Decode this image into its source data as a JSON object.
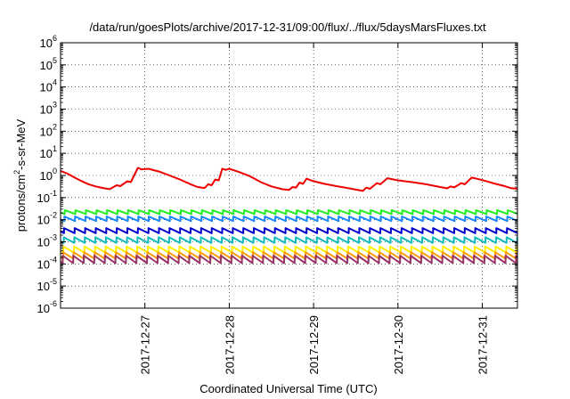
{
  "chart_data": {
    "type": "line",
    "title": "/data/run/goesPlots/archive/2017-12-31/09:00/flux/../flux/5daysMarsFluxes.txt",
    "xlabel": "Coordinated Universal Time (UTC)",
    "ylabel": {
      "prefix": "protons/cm",
      "superscript": "2",
      "suffix": "-s-sr-MeV"
    },
    "yscale": "log",
    "ylim": [
      1e-06,
      1000000.0
    ],
    "xlim": [
      "2017-12-26T00:00",
      "2017-12-31T10:00"
    ],
    "grid": {
      "x": true,
      "y": true,
      "style": "dotted"
    },
    "ytick_labels": [
      {
        "value": 1e-06,
        "base": "10",
        "exp": "-6"
      },
      {
        "value": 1e-05,
        "base": "10",
        "exp": "-5"
      },
      {
        "value": 0.0001,
        "base": "10",
        "exp": "-4"
      },
      {
        "value": 0.001,
        "base": "10",
        "exp": "-3"
      },
      {
        "value": 0.01,
        "base": "10",
        "exp": "-2"
      },
      {
        "value": 0.1,
        "base": "10",
        "exp": "-1"
      },
      {
        "value": 1,
        "base": "10",
        "exp": "0"
      },
      {
        "value": 10,
        "base": "10",
        "exp": "1"
      },
      {
        "value": 100,
        "base": "10",
        "exp": "2"
      },
      {
        "value": 1000,
        "base": "10",
        "exp": "3"
      },
      {
        "value": 10000,
        "base": "10",
        "exp": "4"
      },
      {
        "value": 100000,
        "base": "10",
        "exp": "5"
      },
      {
        "value": 1000000,
        "base": "10",
        "exp": "6"
      }
    ],
    "xtick_labels": [
      {
        "value": "2017-12-27T00:00",
        "label": "2017-12-27"
      },
      {
        "value": "2017-12-28T00:00",
        "label": "2017-12-28"
      },
      {
        "value": "2017-12-29T00:00",
        "label": "2017-12-29"
      },
      {
        "value": "2017-12-30T00:00",
        "label": "2017-12-30"
      },
      {
        "value": "2017-12-31T00:00",
        "label": "2017-12-31"
      }
    ],
    "series": [
      {
        "color": "#ee0000",
        "points": [
          [
            "2017-12-26T00:00",
            1.6
          ],
          [
            "2017-12-26T02:00",
            1.2
          ],
          [
            "2017-12-26T04:00",
            0.8
          ],
          [
            "2017-12-26T06:00",
            0.55
          ],
          [
            "2017-12-26T08:00",
            0.4
          ],
          [
            "2017-12-26T10:00",
            0.32
          ],
          [
            "2017-12-26T12:00",
            0.27
          ],
          [
            "2017-12-26T14:00",
            0.24
          ],
          [
            "2017-12-26T16:00",
            0.36
          ],
          [
            "2017-12-26T17:00",
            0.33
          ],
          [
            "2017-12-26T19:00",
            0.55
          ],
          [
            "2017-12-26T20:00",
            0.5
          ],
          [
            "2017-12-26T22:00",
            2.2
          ],
          [
            "2017-12-26T23:00",
            1.9
          ],
          [
            "2017-12-27T01:00",
            2.0
          ],
          [
            "2017-12-27T04:00",
            1.5
          ],
          [
            "2017-12-27T07:00",
            1.0
          ],
          [
            "2017-12-27T10:00",
            0.65
          ],
          [
            "2017-12-27T13:00",
            0.4
          ],
          [
            "2017-12-27T15:00",
            0.3
          ],
          [
            "2017-12-27T17:00",
            0.27
          ],
          [
            "2017-12-27T18:00",
            0.4
          ],
          [
            "2017-12-27T19:00",
            0.36
          ],
          [
            "2017-12-27T20:00",
            0.65
          ],
          [
            "2017-12-27T21:00",
            0.6
          ],
          [
            "2017-12-27T22:00",
            2.0
          ],
          [
            "2017-12-27T23:00",
            1.8
          ],
          [
            "2017-12-28T00:00",
            2.0
          ],
          [
            "2017-12-28T03:00",
            1.4
          ],
          [
            "2017-12-28T06:00",
            0.9
          ],
          [
            "2017-12-28T09:00",
            0.5
          ],
          [
            "2017-12-28T12:00",
            0.32
          ],
          [
            "2017-12-28T15:00",
            0.24
          ],
          [
            "2017-12-28T17:00",
            0.22
          ],
          [
            "2017-12-28T18:00",
            0.3
          ],
          [
            "2017-12-28T19:00",
            0.28
          ],
          [
            "2017-12-28T20:00",
            0.48
          ],
          [
            "2017-12-28T21:00",
            0.42
          ],
          [
            "2017-12-28T22:00",
            0.72
          ],
          [
            "2017-12-28T23:00",
            0.62
          ],
          [
            "2017-12-29T00:00",
            0.55
          ],
          [
            "2017-12-29T03:00",
            0.42
          ],
          [
            "2017-12-29T06:00",
            0.34
          ],
          [
            "2017-12-29T09:00",
            0.28
          ],
          [
            "2017-12-29T12:00",
            0.23
          ],
          [
            "2017-12-29T14:00",
            0.2
          ],
          [
            "2017-12-29T15:00",
            0.28
          ],
          [
            "2017-12-29T16:00",
            0.25
          ],
          [
            "2017-12-29T18:00",
            0.45
          ],
          [
            "2017-12-29T19:00",
            0.4
          ],
          [
            "2017-12-29T21:00",
            0.75
          ],
          [
            "2017-12-30T00:00",
            0.6
          ],
          [
            "2017-12-30T04:00",
            0.5
          ],
          [
            "2017-12-30T08:00",
            0.4
          ],
          [
            "2017-12-30T12:00",
            0.3
          ],
          [
            "2017-12-30T14:00",
            0.26
          ],
          [
            "2017-12-30T15:00",
            0.32
          ],
          [
            "2017-12-30T16:00",
            0.29
          ],
          [
            "2017-12-30T18:00",
            0.45
          ],
          [
            "2017-12-30T19:00",
            0.4
          ],
          [
            "2017-12-30T21:00",
            0.8
          ],
          [
            "2017-12-31T00:00",
            0.62
          ],
          [
            "2017-12-31T03:00",
            0.45
          ],
          [
            "2017-12-31T06:00",
            0.34
          ],
          [
            "2017-12-31T08:00",
            0.27
          ],
          [
            "2017-12-31T10:00",
            0.25
          ]
        ]
      },
      {
        "color": "#22ee22",
        "level": 0.022,
        "ratio": 1.5,
        "first_peak_hours": 1.2
      },
      {
        "color": "#1c88ff",
        "level": 0.011,
        "ratio": 1.6,
        "first_peak_hours": 1.1
      },
      {
        "color": "#0000cc",
        "level": 0.0032,
        "ratio": 1.7,
        "first_peak_hours": 1.0
      },
      {
        "color": "#11bbbb",
        "level": 0.0012,
        "ratio": 1.8,
        "first_peak_hours": 0.9
      },
      {
        "color": "#ffee00",
        "level": 0.00045,
        "ratio": 1.9,
        "first_peak_hours": 0.8
      },
      {
        "color": "#ff9900",
        "level": 0.00024,
        "ratio": 2.0,
        "first_peak_hours": 0.7
      },
      {
        "color": "#993366",
        "level": 0.00016,
        "ratio": 2.2,
        "first_peak_hours": 0.6
      }
    ],
    "sawtooth_period_hours": 3
  }
}
